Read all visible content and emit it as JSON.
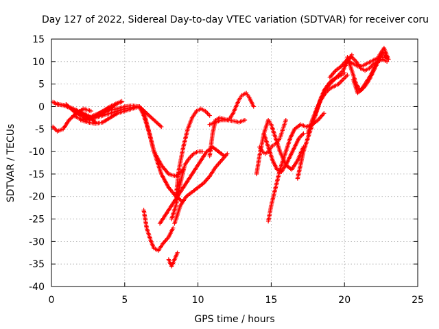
{
  "chart_data": {
    "type": "scatter",
    "title": "Day 127 of 2022, Sidereal Day-to-day VTEC variation (SDTVAR) for receiver coru",
    "xlabel": "GPS time / hours",
    "ylabel": "SDTVAR / TECUs",
    "xlim": [
      0,
      25
    ],
    "ylim": [
      -40,
      15
    ],
    "x_ticks": [
      0,
      5,
      10,
      15,
      20,
      25
    ],
    "y_ticks": [
      -40,
      -35,
      -30,
      -25,
      -20,
      -15,
      -10,
      -5,
      0,
      5,
      10,
      15
    ],
    "x_tick_labels": [
      "0",
      "5",
      "10",
      "15",
      "20",
      "25"
    ],
    "y_tick_labels": [
      "-40",
      "-35",
      "-30",
      "-25",
      "-20",
      "-15",
      "-10",
      "-5",
      "0",
      "5",
      "10",
      "15"
    ],
    "grid": true,
    "marker": "plus",
    "color": "#ff0000",
    "series": [
      {
        "x": [
          0.1,
          0.5,
          1.0,
          1.5,
          2.0,
          2.5,
          3.0
        ],
        "values": [
          1.0,
          0.5,
          0.2,
          -0.5,
          -1.2,
          -2.0,
          -3.5
        ]
      },
      {
        "x": [
          0.1,
          0.4,
          0.8,
          1.2,
          1.7,
          2.2,
          2.7
        ],
        "values": [
          -4.5,
          -5.5,
          -5.0,
          -3.0,
          -1.5,
          -0.5,
          -1.0
        ]
      },
      {
        "x": [
          0.3,
          0.8,
          1.4,
          2.0,
          2.6,
          3.2,
          3.8,
          4.4,
          4.8
        ],
        "values": [
          0.5,
          0.3,
          -0.5,
          -1.5,
          -2.5,
          -2.0,
          -1.0,
          0.5,
          1.2
        ]
      },
      {
        "x": [
          1.0,
          1.5,
          2.0,
          2.5,
          3.0,
          3.5,
          4.0,
          4.5,
          4.8
        ],
        "values": [
          0.5,
          -1.0,
          -2.0,
          -3.0,
          -2.0,
          -1.0,
          0.0,
          0.8,
          1.0
        ]
      },
      {
        "x": [
          1.5,
          2.0,
          2.5,
          3.0,
          3.5,
          4.0,
          4.5,
          5.0,
          5.5,
          6.0,
          6.3,
          6.6,
          7.0,
          7.5,
          8.0,
          8.5,
          9.0
        ],
        "values": [
          -2.0,
          -2.8,
          -3.0,
          -2.5,
          -2.0,
          -1.5,
          -1.0,
          -0.5,
          -0.2,
          0.0,
          -1.0,
          -5.0,
          -10.0,
          -13.0,
          -15.0,
          -15.5,
          -14.0
        ]
      },
      {
        "x": [
          2.0,
          2.5,
          3.0,
          3.5,
          4.0,
          4.5,
          5.0,
          5.5,
          6.0,
          6.5,
          7.0,
          7.5
        ],
        "values": [
          -3.0,
          -3.5,
          -3.8,
          -3.5,
          -2.5,
          -1.5,
          -1.0,
          -0.5,
          0.0,
          -1.5,
          -3.0,
          -4.5
        ]
      },
      {
        "x": [
          2.5,
          3.0,
          3.5,
          4.0,
          4.5,
          5.0,
          5.5,
          6.0,
          6.3,
          6.7,
          7.0,
          7.5,
          8.0,
          8.5,
          8.9
        ],
        "values": [
          -2.5,
          -1.8,
          -1.2,
          -0.8,
          -0.5,
          0.0,
          0.2,
          0.0,
          -2.0,
          -6.0,
          -10.0,
          -15.0,
          -18.0,
          -20.0,
          -21.0
        ]
      },
      {
        "x": [
          6.3,
          6.5,
          6.8,
          7.0,
          7.3,
          7.6,
          8.0,
          8.3
        ],
        "values": [
          -23.0,
          -27.0,
          -30.0,
          -31.5,
          -32.0,
          -30.5,
          -29.0,
          -27.0
        ]
      },
      {
        "x": [
          8.0,
          8.2,
          8.4,
          8.6
        ],
        "values": [
          -34.0,
          -35.5,
          -34.0,
          -32.5
        ]
      },
      {
        "x": [
          7.4,
          7.8,
          8.2,
          8.6,
          9.0,
          9.4,
          9.8,
          10.2,
          10.6,
          11.0,
          11.4,
          11.8
        ],
        "values": [
          -26.0,
          -24.0,
          -22.0,
          -20.0,
          -18.0,
          -16.0,
          -14.0,
          -12.0,
          -10.0,
          -9.0,
          -10.0,
          -11.0
        ]
      },
      {
        "x": [
          8.2,
          8.5,
          8.8,
          9.1,
          9.4,
          9.7,
          10.0,
          10.3
        ],
        "values": [
          -25.0,
          -22.0,
          -17.0,
          -13.0,
          -11.5,
          -10.5,
          -10.0,
          -10.0
        ]
      },
      {
        "x": [
          8.4,
          8.8,
          9.2,
          9.6,
          10.0,
          10.4,
          10.8,
          11.2,
          11.6,
          12.0
        ],
        "values": [
          -26.0,
          -22.0,
          -20.0,
          -19.0,
          -18.0,
          -17.0,
          -15.5,
          -13.5,
          -12.0,
          -10.5
        ]
      },
      {
        "x": [
          8.5,
          8.7,
          9.0,
          9.3,
          9.6,
          9.9,
          10.2,
          10.5,
          10.8
        ],
        "values": [
          -20.0,
          -14.0,
          -9.0,
          -5.0,
          -2.5,
          -1.0,
          -0.5,
          -1.0,
          -2.0
        ]
      },
      {
        "x": [
          10.8,
          11.0,
          11.2,
          11.5,
          11.8,
          12.1,
          12.4,
          12.6,
          12.8,
          13.0,
          13.3,
          13.5,
          13.8
        ],
        "values": [
          -11.0,
          -6.0,
          -3.0,
          -2.5,
          -2.8,
          -3.0,
          -1.5,
          0.0,
          1.5,
          2.5,
          3.0,
          2.0,
          0.0
        ]
      },
      {
        "x": [
          10.8,
          11.2,
          11.6,
          12.0,
          12.4,
          12.8,
          13.2
        ],
        "values": [
          -4.0,
          -3.5,
          -3.0,
          -3.0,
          -3.2,
          -3.5,
          -3.0
        ]
      },
      {
        "x": [
          14.0,
          14.2,
          14.5,
          14.8,
          15.0,
          15.3,
          15.6,
          16.0,
          16.4,
          16.8,
          17.2
        ],
        "values": [
          -15.0,
          -11.0,
          -6.0,
          -3.0,
          -4.0,
          -7.0,
          -10.0,
          -13.0,
          -14.0,
          -12.0,
          -9.0
        ]
      },
      {
        "x": [
          14.5,
          14.8,
          15.1,
          15.4,
          15.7,
          16.0,
          16.3,
          16.6,
          16.9,
          17.2
        ],
        "values": [
          -6.0,
          -9.0,
          -12.0,
          -14.0,
          -14.5,
          -13.0,
          -11.0,
          -9.0,
          -7.0,
          -6.0
        ]
      },
      {
        "x": [
          14.2,
          14.4,
          14.6,
          14.8,
          15.0,
          15.2,
          15.4,
          15.6,
          15.8,
          16.0
        ],
        "values": [
          -9.0,
          -10.0,
          -10.5,
          -10.0,
          -9.0,
          -8.5,
          -8.0,
          -7.0,
          -5.0,
          -3.0
        ]
      },
      {
        "x": [
          14.8,
          15.0,
          15.3,
          15.6,
          16.0,
          16.3,
          16.6,
          17.0,
          17.4,
          17.8,
          18.2,
          18.6
        ],
        "values": [
          -25.5,
          -22.0,
          -18.0,
          -14.0,
          -10.0,
          -7.0,
          -5.0,
          -4.0,
          -4.5,
          -4.0,
          -3.0,
          -1.5
        ]
      },
      {
        "x": [
          16.8,
          17.0,
          17.2,
          17.5,
          17.8,
          18.1,
          18.4,
          18.7,
          19.0,
          19.3,
          19.6,
          19.9,
          20.2,
          20.5
        ],
        "values": [
          -16.0,
          -13.0,
          -10.0,
          -7.0,
          -4.0,
          -1.0,
          2.0,
          4.0,
          5.0,
          6.0,
          7.0,
          8.0,
          10.0,
          11.5
        ]
      },
      {
        "x": [
          18.0,
          18.3,
          18.6,
          18.9,
          19.2,
          19.5,
          19.8,
          20.0
        ],
        "values": [
          -2.0,
          1.0,
          3.5,
          5.0,
          6.0,
          6.5,
          7.0,
          7.5
        ]
      },
      {
        "x": [
          17.5,
          17.8,
          18.1,
          18.4,
          18.7,
          19.0,
          19.3,
          19.6,
          19.9,
          20.2
        ],
        "values": [
          -6.0,
          -3.0,
          -0.5,
          1.5,
          3.0,
          4.0,
          4.5,
          5.0,
          6.0,
          7.0
        ]
      },
      {
        "x": [
          19.0,
          19.4,
          19.8,
          20.2,
          20.5,
          20.8,
          21.1,
          21.4,
          21.7,
          22.0,
          22.3,
          22.6,
          22.9
        ],
        "values": [
          6.5,
          8.0,
          9.0,
          10.5,
          11.0,
          10.0,
          8.5,
          8.0,
          8.5,
          9.5,
          10.0,
          10.5,
          10.0
        ]
      },
      {
        "x": [
          20.2,
          20.5,
          20.8,
          21.1,
          21.4,
          21.7,
          22.0,
          22.3,
          22.6,
          22.9
        ],
        "values": [
          11.0,
          8.0,
          5.0,
          3.5,
          4.5,
          6.0,
          8.0,
          10.0,
          12.0,
          11.0
        ]
      },
      {
        "x": [
          20.6,
          20.9,
          21.2,
          21.5,
          21.8,
          22.1,
          22.4,
          22.7,
          23.0
        ],
        "values": [
          6.0,
          3.0,
          4.0,
          5.5,
          7.0,
          9.0,
          11.5,
          13.0,
          10.5
        ]
      },
      {
        "x": [
          20.3,
          20.6,
          20.9,
          21.2,
          21.5,
          21.8,
          22.1,
          22.4,
          22.7,
          23.0
        ],
        "values": [
          10.0,
          9.5,
          9.0,
          9.0,
          9.5,
          10.0,
          10.5,
          11.0,
          11.0,
          10.5
        ]
      }
    ]
  }
}
